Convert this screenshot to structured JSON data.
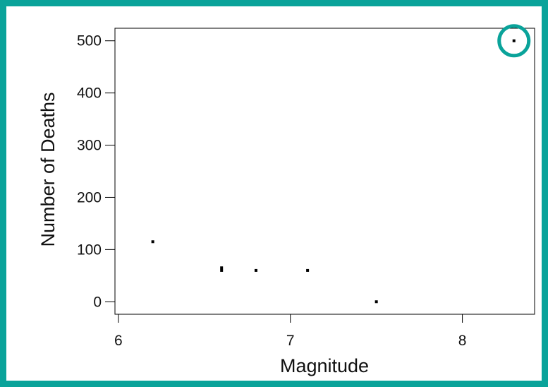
{
  "colors": {
    "frame": "#0aa39a",
    "highlight_circle": "#0aa39a",
    "points": "#000000"
  },
  "chart_data": {
    "type": "scatter",
    "title": "",
    "xlabel": "Magnitude",
    "ylabel": "Number of Deaths",
    "xlim": [
      5.98,
      8.42
    ],
    "ylim": [
      -24,
      524
    ],
    "xticks": [
      6,
      7,
      8
    ],
    "xtick_labels": [
      "6",
      "7",
      "8"
    ],
    "yticks": [
      0,
      100,
      200,
      300,
      400,
      500
    ],
    "ytick_labels": [
      "0",
      "100",
      "200",
      "300",
      "400",
      "500"
    ],
    "grid": false,
    "legend": false,
    "points": [
      {
        "x": 6.2,
        "y": 115
      },
      {
        "x": 6.6,
        "y": 65
      },
      {
        "x": 6.6,
        "y": 60
      },
      {
        "x": 6.8,
        "y": 60
      },
      {
        "x": 7.1,
        "y": 60
      },
      {
        "x": 7.5,
        "y": 0
      },
      {
        "x": 8.3,
        "y": 500
      }
    ],
    "annotations": [
      {
        "type": "circle",
        "target_point_index": 6,
        "meaning": "highlighted outlier"
      }
    ]
  }
}
